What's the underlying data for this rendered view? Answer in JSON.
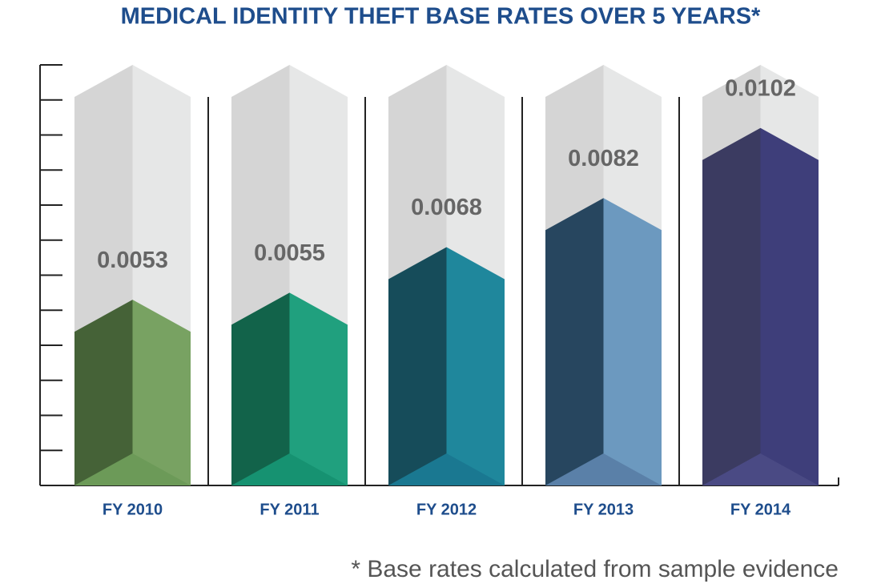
{
  "chart_data": {
    "type": "bar",
    "title": "MEDICAL IDENTITY THEFT BASE RATES OVER 5 YEARS*",
    "categories": [
      "FY 2010",
      "FY 2011",
      "FY 2012",
      "FY 2013",
      "FY 2014"
    ],
    "values": [
      0.0053,
      0.0055,
      0.0068,
      0.0082,
      0.0102
    ],
    "colors": [
      "#78a262",
      "#20a07e",
      "#1f879c",
      "#6c99bf",
      "#3e3e7a"
    ],
    "dark_colors": [
      "#456237",
      "#12634a",
      "#164c5a",
      "#27465f",
      "#3b3b61"
    ],
    "base_colors": [
      "#6c9a58",
      "#169271",
      "#1a7891",
      "#5a80a8",
      "#4a4a84"
    ],
    "ylim": [
      0,
      0.012
    ],
    "yticks": [
      0,
      0.001,
      0.002,
      0.003,
      0.004,
      0.005,
      0.006,
      0.007,
      0.008,
      0.009,
      0.01,
      0.011,
      0.012
    ],
    "footnote": "* Base rates calculated from sample evidence"
  }
}
